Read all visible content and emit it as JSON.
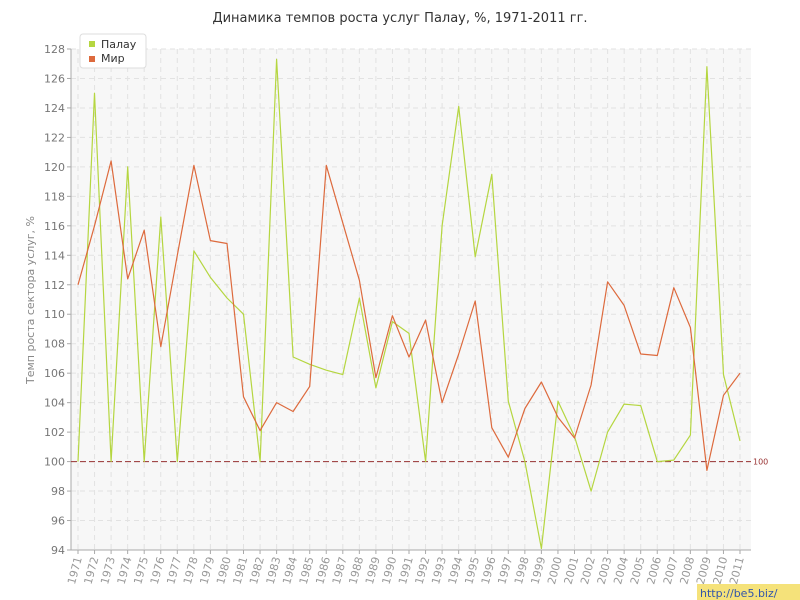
{
  "chart_data": {
    "type": "line",
    "title": "Динамика темпов роста услуг Палау, %, 1971-2011 гг.",
    "ylabel": "Темп роста сектора услуг, %",
    "xlabel": "",
    "ylim": [
      94,
      128
    ],
    "yticks": [
      94,
      96,
      98,
      100,
      102,
      104,
      106,
      108,
      110,
      112,
      114,
      116,
      118,
      120,
      122,
      124,
      126,
      128
    ],
    "x": [
      1971,
      1972,
      1973,
      1974,
      1975,
      1976,
      1977,
      1978,
      1979,
      1980,
      1981,
      1982,
      1983,
      1984,
      1985,
      1986,
      1987,
      1988,
      1989,
      1990,
      1991,
      1992,
      1993,
      1994,
      1995,
      1996,
      1997,
      1998,
      1999,
      2000,
      2001,
      2002,
      2003,
      2004,
      2005,
      2006,
      2007,
      2008,
      2009,
      2010,
      2011
    ],
    "series": [
      {
        "name": "Палау",
        "color": "#b5d640",
        "values": [
          100,
          125,
          100,
          120,
          100,
          116.6,
          100,
          114.3,
          112.5,
          111.1,
          110,
          100,
          127.3,
          107.1,
          106.6,
          106.2,
          105.9,
          111.1,
          105,
          109.5,
          108.7,
          100,
          116,
          124.1,
          113.9,
          119.5,
          104.1,
          100,
          94.1,
          104.1,
          101.7,
          98,
          102,
          103.9,
          103.8,
          100,
          100.1,
          101.8,
          126.8,
          105.9,
          101.4
        ]
      },
      {
        "name": "Мир",
        "color": "#dd6a3d",
        "values": [
          112,
          116,
          120.4,
          112.4,
          115.7,
          107.8,
          114,
          120.1,
          115,
          114.8,
          104.4,
          102.1,
          104,
          103.4,
          105.1,
          120.1,
          116.2,
          112.3,
          105.7,
          109.9,
          107.1,
          109.6,
          104,
          107.3,
          110.9,
          102.3,
          100.3,
          103.6,
          105.4,
          103,
          101.6,
          105.2,
          112.2,
          110.6,
          107.3,
          107.2,
          111.8,
          109.1,
          99.4,
          104.5,
          106
        ]
      }
    ],
    "reference_line": {
      "value": 100,
      "label": "100",
      "color": "#993333"
    },
    "grid": true,
    "legend_position": "top-left"
  },
  "watermark": "http://be5.biz/"
}
